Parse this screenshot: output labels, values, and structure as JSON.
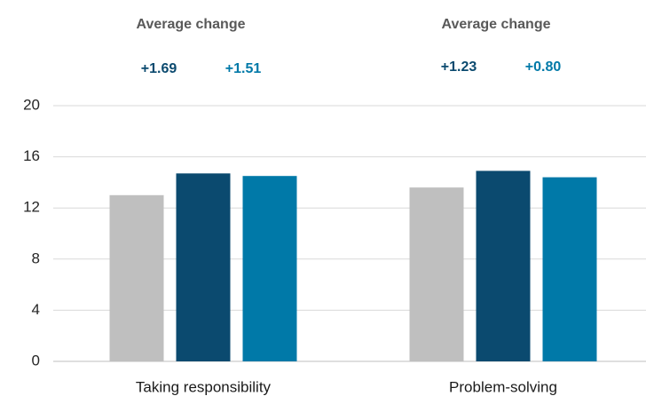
{
  "chart_data": {
    "type": "bar",
    "categories": [
      "Taking responsibility",
      "Problem-solving"
    ],
    "series": [
      {
        "color": "#bfbfbf",
        "values": [
          13.0,
          13.6
        ]
      },
      {
        "color": "#0b4a6f",
        "values": [
          14.7,
          14.9
        ]
      },
      {
        "color": "#0079a8",
        "values": [
          14.5,
          14.4
        ]
      }
    ],
    "ylim": [
      0,
      20
    ],
    "yticks": [
      0,
      4,
      8,
      12,
      16,
      20
    ],
    "grid": true,
    "annotations": [
      {
        "title": "Average change",
        "labels": [
          "+1.69",
          "+1.51"
        ]
      },
      {
        "title": "Average change",
        "labels": [
          "+1.23",
          "+0.80"
        ]
      }
    ]
  }
}
